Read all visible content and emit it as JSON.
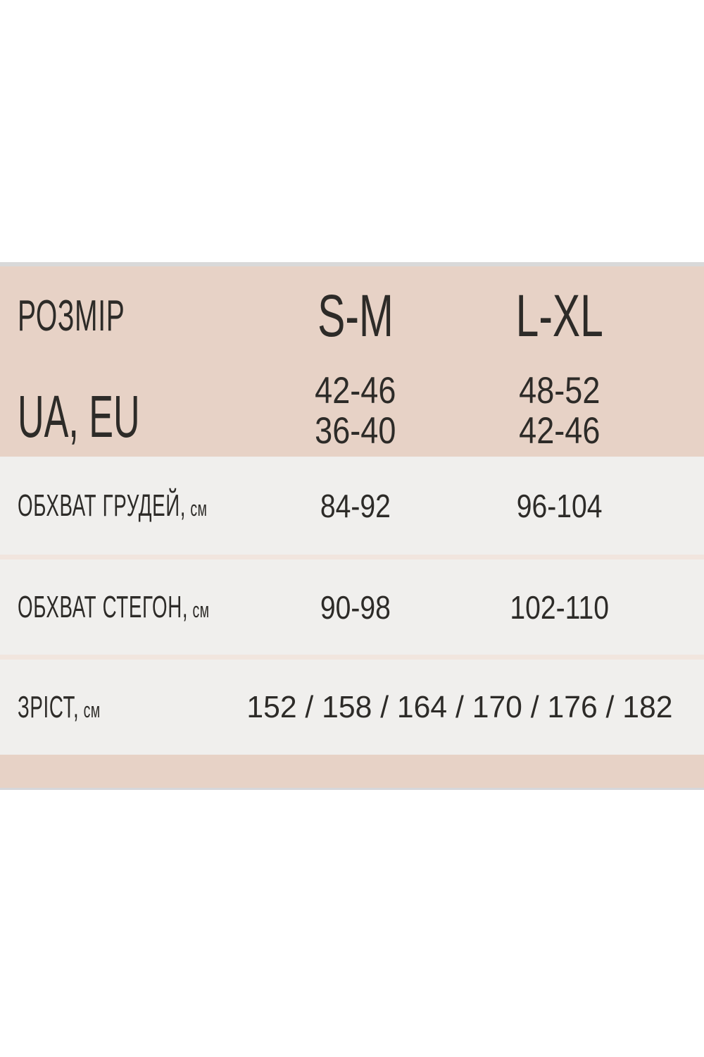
{
  "colors": {
    "page_bg": "#ffffff",
    "header_bg": "#e7d2c6",
    "row_bg": "#f0efed",
    "divider": "#f1e5de",
    "top_line": "#d9d9d9",
    "bottom_line": "#d6d7db",
    "text": "#2d2b28"
  },
  "size_chart": {
    "size_label": "РОЗМІР",
    "columns": [
      "S-M",
      "L-XL"
    ],
    "ua_eu_label": "UA, EU",
    "ua_eu": {
      "sm_line1": "42-46",
      "sm_line2": "36-40",
      "lxl_line1": "48-52",
      "lxl_line2": "42-46"
    },
    "rows": [
      {
        "label": "ОБХВАТ ГРУДЕЙ,",
        "unit": "см",
        "sm": "84-92",
        "lxl": "96-104"
      },
      {
        "label": "ОБХВАТ СТЕГОН,",
        "unit": "см",
        "sm": "90-98",
        "lxl": "102-110"
      }
    ],
    "height_row": {
      "label": "ЗРІСТ,",
      "unit": "см",
      "values": "152 / 158 / 164 / 170 / 176 / 182"
    }
  },
  "chart_data": {
    "type": "table",
    "title": "РОЗМІР (size chart, UA/EU)",
    "columns": [
      "РОЗМІР",
      "S-M",
      "L-XL"
    ],
    "rows": [
      [
        "UA, EU",
        "42-46 / 36-40",
        "48-52 / 42-46"
      ],
      [
        "ОБХВАТ ГРУДЕЙ, см",
        "84-92",
        "96-104"
      ],
      [
        "ОБХВАТ СТЕГОН, см",
        "90-98",
        "102-110"
      ],
      [
        "ЗРІСТ, см",
        "152 / 158 / 164 / 170 / 176 / 182",
        ""
      ]
    ]
  }
}
